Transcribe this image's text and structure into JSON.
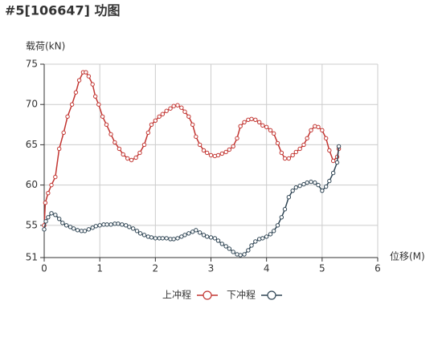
{
  "chart_data": {
    "type": "line",
    "title": "#5[106647] 功图",
    "y_label": "载荷(kN)",
    "x_label": "位移(M)",
    "xlim": [
      0,
      6
    ],
    "xticks": [
      0,
      1,
      2,
      3,
      4,
      5,
      6
    ],
    "ylim": [
      51,
      75
    ],
    "yticks": [
      51,
      55,
      60,
      65,
      70,
      75
    ],
    "grid": true,
    "legend": "bottom",
    "series": [
      {
        "name": "上冲程",
        "color": "#c23531",
        "x": [
          0,
          0.02,
          0.07,
          0.13,
          0.2,
          0.27,
          0.35,
          0.42,
          0.5,
          0.57,
          0.63,
          0.7,
          0.75,
          0.8,
          0.87,
          0.92,
          0.98,
          1.05,
          1.12,
          1.2,
          1.27,
          1.35,
          1.42,
          1.5,
          1.57,
          1.65,
          1.72,
          1.8,
          1.87,
          1.93,
          2.0,
          2.07,
          2.13,
          2.2,
          2.27,
          2.33,
          2.4,
          2.47,
          2.53,
          2.6,
          2.67,
          2.73,
          2.8,
          2.87,
          2.93,
          3.0,
          3.07,
          3.13,
          3.2,
          3.27,
          3.33,
          3.4,
          3.47,
          3.53,
          3.6,
          3.67,
          3.73,
          3.8,
          3.87,
          3.93,
          4.0,
          4.07,
          4.13,
          4.2,
          4.27,
          4.33,
          4.4,
          4.47,
          4.53,
          4.6,
          4.67,
          4.73,
          4.8,
          4.87,
          4.93,
          5.0,
          5.07,
          5.13,
          5.2,
          5.27,
          5.3
        ],
        "values": [
          55,
          57.8,
          59,
          60,
          61,
          64.5,
          66.5,
          68.5,
          70,
          71.5,
          73,
          74,
          74,
          73.5,
          72.5,
          71,
          70,
          68.5,
          67.5,
          66.3,
          65.3,
          64.5,
          63.8,
          63.3,
          63.1,
          63.4,
          64,
          65,
          66.5,
          67.5,
          68,
          68.5,
          68.8,
          69.2,
          69.5,
          69.8,
          69.9,
          69.6,
          69.1,
          68.5,
          67.5,
          66,
          65,
          64.3,
          64,
          63.7,
          63.6,
          63.7,
          63.9,
          64.1,
          64.4,
          64.8,
          65.8,
          67.3,
          67.8,
          68.1,
          68.2,
          68.1,
          67.8,
          67.4,
          67.2,
          66.8,
          66.4,
          65.2,
          64,
          63.3,
          63.3,
          63.7,
          64.1,
          64.5,
          65,
          65.8,
          66.8,
          67.3,
          67.2,
          66.8,
          65.8,
          64.3,
          63,
          63.5,
          64.5
        ]
      },
      {
        "name": "下冲程",
        "color": "#2f4554",
        "x": [
          0,
          0.03,
          0.07,
          0.13,
          0.2,
          0.27,
          0.33,
          0.4,
          0.47,
          0.53,
          0.6,
          0.67,
          0.73,
          0.8,
          0.87,
          0.93,
          1.0,
          1.07,
          1.13,
          1.2,
          1.27,
          1.33,
          1.4,
          1.47,
          1.53,
          1.6,
          1.67,
          1.73,
          1.8,
          1.87,
          1.93,
          2.0,
          2.07,
          2.13,
          2.2,
          2.27,
          2.33,
          2.4,
          2.47,
          2.53,
          2.6,
          2.67,
          2.73,
          2.8,
          2.87,
          2.93,
          3.0,
          3.07,
          3.13,
          3.2,
          3.27,
          3.33,
          3.4,
          3.47,
          3.53,
          3.6,
          3.67,
          3.73,
          3.8,
          3.87,
          3.93,
          4.0,
          4.07,
          4.13,
          4.2,
          4.27,
          4.33,
          4.4,
          4.47,
          4.53,
          4.6,
          4.67,
          4.73,
          4.8,
          4.87,
          4.93,
          5.0,
          5.07,
          5.13,
          5.2,
          5.27,
          5.3
        ],
        "values": [
          54.5,
          55.5,
          56,
          56.5,
          56.3,
          55.8,
          55.3,
          55,
          54.8,
          54.6,
          54.4,
          54.3,
          54.3,
          54.5,
          54.7,
          54.9,
          55,
          55.1,
          55.1,
          55.1,
          55.2,
          55.2,
          55.1,
          55,
          54.8,
          54.6,
          54.3,
          54,
          53.8,
          53.6,
          53.5,
          53.4,
          53.4,
          53.4,
          53.4,
          53.3,
          53.3,
          53.4,
          53.6,
          53.8,
          54,
          54.2,
          54.4,
          54.1,
          53.8,
          53.6,
          53.5,
          53.4,
          53.1,
          52.7,
          52.4,
          52.1,
          51.7,
          51.4,
          51.3,
          51.4,
          51.9,
          52.5,
          53,
          53.3,
          53.4,
          53.6,
          53.9,
          54.3,
          55,
          56,
          57,
          58.5,
          59.3,
          59.7,
          59.9,
          60.1,
          60.3,
          60.4,
          60.3,
          60,
          59.3,
          59.8,
          60.5,
          61.5,
          62.8,
          64.8
        ]
      }
    ]
  }
}
